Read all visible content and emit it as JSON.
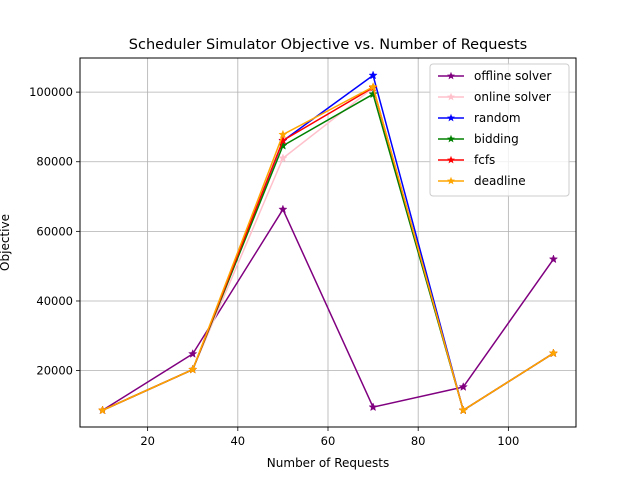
{
  "chart_data": {
    "type": "line",
    "title": "Scheduler Simulator Objective vs. Number of Requests",
    "xlabel": "Number of Requests",
    "ylabel": "Objective",
    "xlim": [
      5,
      115
    ],
    "ylim": [
      3800,
      109800
    ],
    "x_ticks": [
      20,
      40,
      60,
      80,
      100
    ],
    "y_ticks": [
      20000,
      40000,
      60000,
      80000,
      100000
    ],
    "x_tick_labels": [
      "20",
      "40",
      "60",
      "80",
      "100"
    ],
    "y_tick_labels": [
      "20000",
      "40000",
      "60000",
      "80000",
      "100000"
    ],
    "grid": true,
    "legend_position": "top-right",
    "marker": "star",
    "x": [
      10,
      30,
      50,
      70,
      90,
      110
    ],
    "series": [
      {
        "name": "offline solver",
        "color": "#800080",
        "values": [
          8600,
          24800,
          66300,
          9500,
          15300,
          52000
        ]
      },
      {
        "name": "online solver",
        "color": "#ffc0cb",
        "values": [
          8600,
          20300,
          81000,
          101200,
          8600,
          25000
        ]
      },
      {
        "name": "random",
        "color": "#0000ff",
        "values": [
          8600,
          20300,
          86000,
          104800,
          8600,
          25000
        ]
      },
      {
        "name": "bidding",
        "color": "#008000",
        "values": [
          8600,
          20300,
          84600,
          99400,
          8600,
          25000
        ]
      },
      {
        "name": "fcfs",
        "color": "#ff0000",
        "values": [
          8600,
          20300,
          86100,
          101300,
          8600,
          25000
        ]
      },
      {
        "name": "deadline",
        "color": "#ffa500",
        "values": [
          8600,
          20300,
          87800,
          101500,
          8600,
          25000
        ]
      }
    ]
  }
}
